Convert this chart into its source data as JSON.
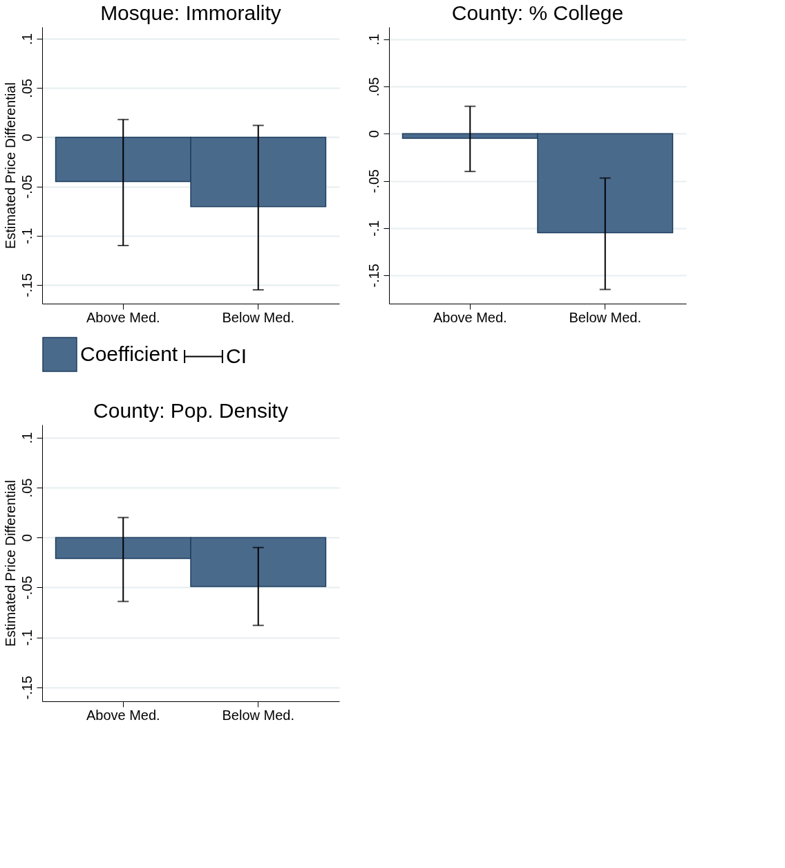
{
  "chart_data": [
    {
      "type": "bar",
      "title": "Mosque: Immorality",
      "ylabel": "Estimated Price Differential",
      "categories": [
        "Above Med.",
        "Below Med."
      ],
      "series": [
        {
          "name": "Coefficient",
          "color": "#4a6a8c",
          "values": [
            -0.045,
            -0.0705
          ],
          "errors": [
            [
              -0.11,
              0.018
            ],
            [
              -0.155,
              0.012
            ]
          ]
        }
      ],
      "ylim": [
        -0.169,
        0.112
      ],
      "yticks": [
        {
          "value": -0.15,
          "label": "-.15"
        },
        {
          "value": -0.1,
          "label": "-.1"
        },
        {
          "value": -0.05,
          "label": "-.05"
        },
        0,
        {
          "value": 0.05,
          "label": ".05"
        },
        {
          "value": 0.1,
          "label": ".1"
        }
      ],
      "grid": "y",
      "legend": "bottom",
      "annotations": [
        "CI"
      ]
    },
    {
      "type": "bar",
      "title": "County: % College",
      "categories": [
        "Above Med.",
        "Below Med."
      ],
      "series": [
        {
          "color": "#4a6a8c",
          "values": [
            -0.005,
            -0.105
          ],
          "errors": [
            [
              -0.04,
              0.029
            ],
            [
              -0.165,
              -0.047
            ]
          ]
        }
      ],
      "ylim": [
        -0.18,
        0.113
      ],
      "yticks": [
        {
          "value": -0.15,
          "label": "-.15"
        },
        {
          "value": -0.1,
          "label": "-.1"
        },
        {
          "value": -0.05,
          "label": "-.05"
        },
        0,
        {
          "value": 0.05,
          "label": ".05"
        },
        {
          "value": 0.1,
          "label": ".1"
        }
      ],
      "grid": "y"
    },
    {
      "type": "bar",
      "title": "County: Pop. Density",
      "ylabel": "Estimated Price Differential",
      "categories": [
        "Above Med.",
        "Below Med."
      ],
      "series": [
        {
          "color": "#4a6a8c",
          "values": [
            -0.021,
            -0.049
          ],
          "errors": [
            [
              -0.064,
              0.02
            ],
            [
              -0.088,
              -0.01
            ]
          ]
        }
      ],
      "ylim": [
        -0.164,
        0.113
      ],
      "yticks": [
        {
          "value": -0.15,
          "label": "-.15"
        },
        {
          "value": -0.1,
          "label": "-.1"
        },
        {
          "value": -0.05,
          "label": "-.05"
        },
        0,
        {
          "value": 0.05,
          "label": ".05"
        },
        {
          "value": 0.1,
          "label": ".1"
        }
      ],
      "grid": "y"
    }
  ]
}
